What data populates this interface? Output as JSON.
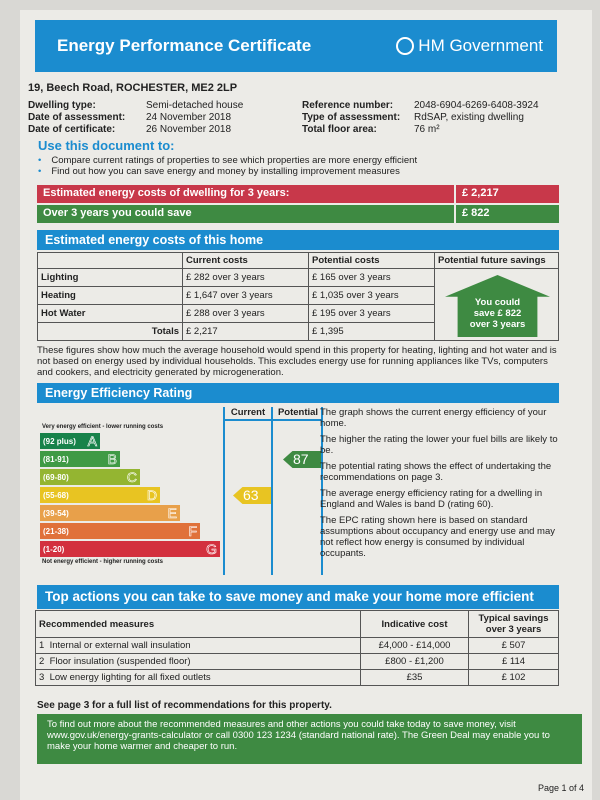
{
  "header": {
    "title": "Energy Performance Certificate",
    "gov": "HM Government"
  },
  "address": "19, Beech Road, ROCHESTER, ME2 2LP",
  "details": {
    "left": [
      {
        "label": "Dwelling type:",
        "value": "Semi-detached house"
      },
      {
        "label": "Date of assessment:",
        "value": "24  November  2018"
      },
      {
        "label": "Date of certificate:",
        "value": "26  November  2018"
      }
    ],
    "right": [
      {
        "label": "Reference number:",
        "value": "2048-6904-6269-6408-3924"
      },
      {
        "label": "Type of assessment:",
        "value": "RdSAP, existing dwelling"
      },
      {
        "label": "Total floor area:",
        "value": "76 m²"
      }
    ]
  },
  "use": {
    "title": "Use this document to:",
    "bullets": [
      "Compare current ratings of properties to see which properties are more energy efficient",
      "Find out how you can save energy and money by installing improvement measures"
    ]
  },
  "summary": {
    "cost_label": "Estimated energy costs of dwelling for 3 years:",
    "cost_value": "£ 2,217",
    "save_label": "Over 3 years you could save",
    "save_value": "£ 822"
  },
  "costs": {
    "title": "Estimated energy costs of this home",
    "headers": [
      "",
      "Current costs",
      "Potential costs",
      "Potential future savings"
    ],
    "rows": [
      [
        "Lighting",
        "£ 282 over 3 years",
        "£ 165 over 3 years"
      ],
      [
        "Heating",
        "£ 1,647 over 3 years",
        "£ 1,035 over 3 years"
      ],
      [
        "Hot Water",
        "£ 288 over 3 years",
        "£ 195 over 3 years"
      ],
      [
        "Totals",
        "£ 2,217",
        "£ 1,395"
      ]
    ],
    "savings_arrow": [
      "You could",
      "save £ 822",
      "over 3 years"
    ]
  },
  "note": "These figures show how much the average household would spend in this property for heating, lighting and hot water and is not based on energy used by individual households. This excludes energy use for running appliances like TVs, computers and cookers, and electricity generated by microgeneration.",
  "rating": {
    "title": "Energy Efficiency Rating",
    "top_caption": "Very energy efficient - lower running costs",
    "bottom_caption": "Not energy efficient - higher running costs",
    "col_current": "Current",
    "col_potential": "Potential",
    "current": "63",
    "potential": "87",
    "current_color": "#e8c422",
    "potential_color": "#3e8a42",
    "bands": [
      {
        "range": "(92 plus)",
        "letter": "A",
        "color": "#17824a"
      },
      {
        "range": "(81-91)",
        "letter": "B",
        "color": "#3f9a45"
      },
      {
        "range": "(69-80)",
        "letter": "C",
        "color": "#94b531"
      },
      {
        "range": "(55-68)",
        "letter": "D",
        "color": "#e8c422"
      },
      {
        "range": "(39-54)",
        "letter": "E",
        "color": "#e8a04a"
      },
      {
        "range": "(21-38)",
        "letter": "F",
        "color": "#e0713a"
      },
      {
        "range": "(1-20)",
        "letter": "G",
        "color": "#d3303e"
      }
    ],
    "text": [
      "The graph shows the current energy efficiency of your home.",
      "The higher the rating the lower your fuel bills are likely to be.",
      "The potential rating shows the effect of undertaking the recommendations on page 3.",
      "The average energy efficiency rating for a dwelling in England and Wales is band D (rating 60).",
      "The EPC rating shown here is based on standard assumptions about occupancy and energy use and may not reflect how energy is consumed by individual occupants."
    ]
  },
  "actions": {
    "title": "Top actions you can take to save money and make your home more efficient",
    "headers": [
      "Recommended measures",
      "Indicative cost",
      "Typical savings over 3 years"
    ],
    "rows": [
      [
        "1",
        "Internal or external wall insulation",
        "£4,000 - £14,000",
        "£ 507"
      ],
      [
        "2",
        "Floor insulation (suspended floor)",
        "£800 - £1,200",
        "£ 114"
      ],
      [
        "3",
        "Low energy lighting for all fixed outlets",
        "£35",
        "£ 102"
      ]
    ]
  },
  "see_page": "See page 3 for a full list of recommendations for this property.",
  "green_deal": "To find out more about the recommended measures and other actions you could take today to save money, visit www.gov.uk/energy-grants-calculator or call 0300 123 1234 (standard national rate). The Green Deal may enable you to make your home warmer and cheaper to run.",
  "page": "Page 1 of 4"
}
